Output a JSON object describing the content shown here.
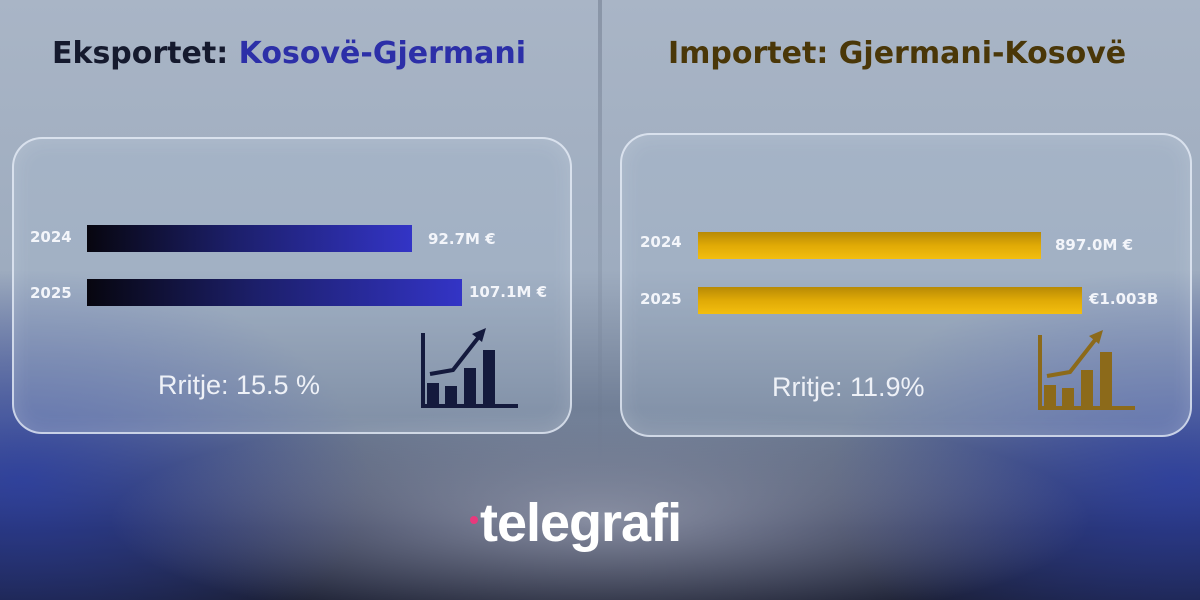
{
  "colors": {
    "export_accent": "#3334c6",
    "import_accent": "#e0aa06",
    "logo_dot": "#e8397c"
  },
  "chart_data": [
    {
      "type": "bar",
      "orientation": "horizontal",
      "title_part1": "Eksportet:",
      "title_part2": "Kosovë-Gjermani",
      "categories": [
        "2024",
        "2025"
      ],
      "values": [
        92.7,
        107.1
      ],
      "unit": "M €",
      "value_labels": [
        "92.7M €",
        "107.1M €"
      ],
      "growth_label": "Rritje: 15.5 %",
      "icon": "growth-chart-icon"
    },
    {
      "type": "bar",
      "orientation": "horizontal",
      "title_part1": "Importet:",
      "title_part2": "Gjermani-Kosovë",
      "categories": [
        "2024",
        "2025"
      ],
      "values": [
        897.0,
        1003.0
      ],
      "unit": "M €",
      "value_labels": [
        "897.0M €",
        "€1.003B"
      ],
      "growth_label": "Rritje: 11.9%",
      "icon": "growth-chart-icon"
    }
  ],
  "logo": {
    "text": "telegrafi"
  }
}
